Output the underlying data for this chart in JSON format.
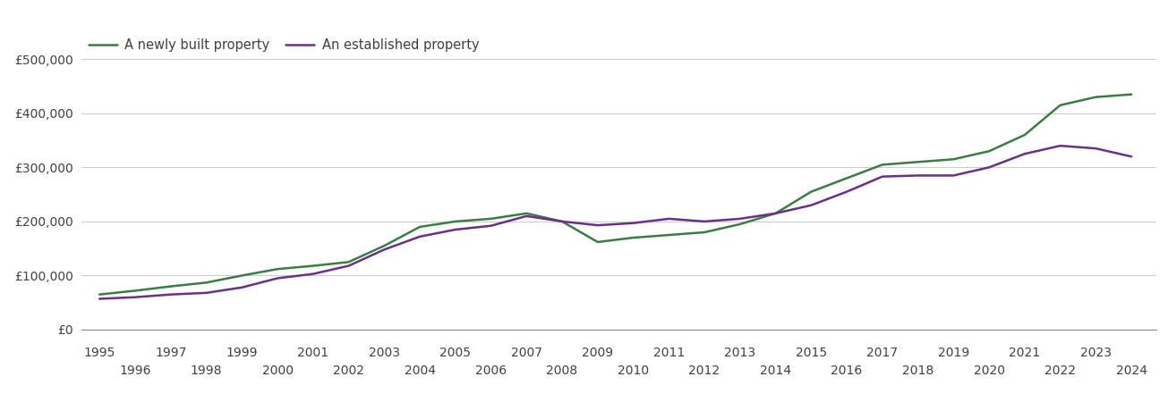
{
  "newly_built": {
    "years": [
      1995,
      1996,
      1997,
      1998,
      1999,
      2000,
      2001,
      2002,
      2003,
      2004,
      2005,
      2006,
      2007,
      2008,
      2009,
      2010,
      2011,
      2012,
      2013,
      2014,
      2015,
      2016,
      2017,
      2018,
      2019,
      2020,
      2021,
      2022,
      2023,
      2024
    ],
    "values": [
      65000,
      72000,
      80000,
      87000,
      100000,
      112000,
      118000,
      125000,
      155000,
      190000,
      200000,
      205000,
      215000,
      200000,
      162000,
      170000,
      175000,
      180000,
      195000,
      215000,
      255000,
      280000,
      305000,
      310000,
      315000,
      330000,
      360000,
      415000,
      430000,
      435000
    ]
  },
  "established": {
    "years": [
      1995,
      1996,
      1997,
      1998,
      1999,
      2000,
      2001,
      2002,
      2003,
      2004,
      2005,
      2006,
      2007,
      2008,
      2009,
      2010,
      2011,
      2012,
      2013,
      2014,
      2015,
      2016,
      2017,
      2018,
      2019,
      2020,
      2021,
      2022,
      2023,
      2024
    ],
    "values": [
      57000,
      60000,
      65000,
      68000,
      78000,
      95000,
      103000,
      118000,
      148000,
      172000,
      185000,
      192000,
      210000,
      200000,
      193000,
      197000,
      205000,
      200000,
      205000,
      215000,
      230000,
      255000,
      283000,
      285000,
      285000,
      300000,
      325000,
      340000,
      335000,
      320000
    ]
  },
  "newly_built_color": "#3a7d44",
  "established_color": "#6a2f8a",
  "legend_labels": [
    "A newly built property",
    "An established property"
  ],
  "ylim": [
    0,
    550000
  ],
  "yticks": [
    0,
    100000,
    200000,
    300000,
    400000,
    500000
  ],
  "ytick_labels": [
    "£0",
    "£100,000",
    "£200,000",
    "£300,000",
    "£400,000",
    "£500,000"
  ],
  "bg_color": "#ffffff",
  "grid_color": "#cccccc",
  "line_width": 1.8,
  "font_color": "#404040",
  "tick_fontsize": 10,
  "legend_fontsize": 10.5,
  "xlim_left": 1994.5,
  "xlim_right": 2024.7
}
